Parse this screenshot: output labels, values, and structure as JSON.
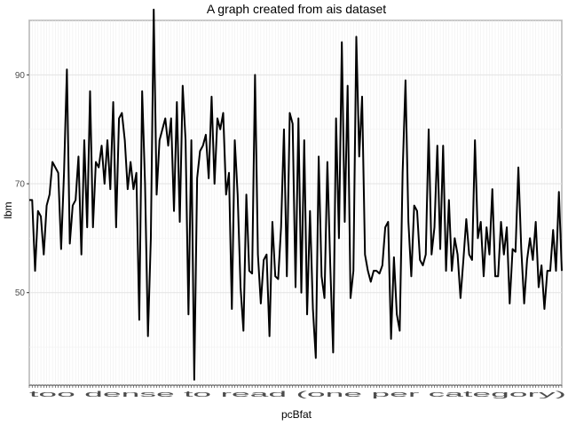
{
  "chart_data": {
    "type": "line",
    "title": "A graph created from ais dataset",
    "xlabel": "pcBfat",
    "ylabel": "lbm",
    "ylim": [
      33,
      100
    ],
    "y_ticks": [
      50,
      70,
      90
    ],
    "x_tick_labels": "too dense to read (one per category)",
    "grid": true,
    "line_color": "#000000",
    "values": [
      67.0,
      67.0,
      54.0,
      65.0,
      64.0,
      57.0,
      66.0,
      68.0,
      74.0,
      73.0,
      72.0,
      58.0,
      72.0,
      91.0,
      59.0,
      66.0,
      67.0,
      75.0,
      57.0,
      78.0,
      62.0,
      87.0,
      62.0,
      74.0,
      73.0,
      77.0,
      70.0,
      78.0,
      69.0,
      85.0,
      62.0,
      82.0,
      83.0,
      78.0,
      69.0,
      74.0,
      69.0,
      72.0,
      45.0,
      87.0,
      70.0,
      42.0,
      60.0,
      102.0,
      68.0,
      78.0,
      80.0,
      82.0,
      77.0,
      82.0,
      65.0,
      85.0,
      63.0,
      88.0,
      78.0,
      46.0,
      78.0,
      34.0,
      71.0,
      76.0,
      77.0,
      79.0,
      71.0,
      86.0,
      70.0,
      82.0,
      80.0,
      83.0,
      68.0,
      72.0,
      47.0,
      78.0,
      68.0,
      51.0,
      43.0,
      68.0,
      54.0,
      53.5,
      90.0,
      57.0,
      48.0,
      56.0,
      57.0,
      42.0,
      63.0,
      53.0,
      52.5,
      62.0,
      80.0,
      53.0,
      83.0,
      81.0,
      51.0,
      82.0,
      50.0,
      78.0,
      46.0,
      65.0,
      47.0,
      38.0,
      75.0,
      53.0,
      49.0,
      74.0,
      55.0,
      39.0,
      82.0,
      60.0,
      96.0,
      63.0,
      88.0,
      49.0,
      54.0,
      97.0,
      75.0,
      86.0,
      57.0,
      54.0,
      52.0,
      54.0,
      54.0,
      53.5,
      55.0,
      62.0,
      63.0,
      41.5,
      56.5,
      46.0,
      43.0,
      72.0,
      89.0,
      63.0,
      53.0,
      66.0,
      65.0,
      56.0,
      55.0,
      57.0,
      80.0,
      57.0,
      62.0,
      77.0,
      58.0,
      77.0,
      54.0,
      67.0,
      54.0,
      60.0,
      57.0,
      49.0,
      56.0,
      63.5,
      57.0,
      56.0,
      78.0,
      60.0,
      63.0,
      53.0,
      62.0,
      57.0,
      69.0,
      53.0,
      53.0,
      63.0,
      57.0,
      62.0,
      48.0,
      58.0,
      57.5,
      73.0,
      58.0,
      48.0,
      56.0,
      60.0,
      56.0,
      63.0,
      51.0,
      55.0,
      47.0,
      54.0,
      54.0,
      61.5,
      54.0,
      68.5,
      54.0
    ]
  }
}
